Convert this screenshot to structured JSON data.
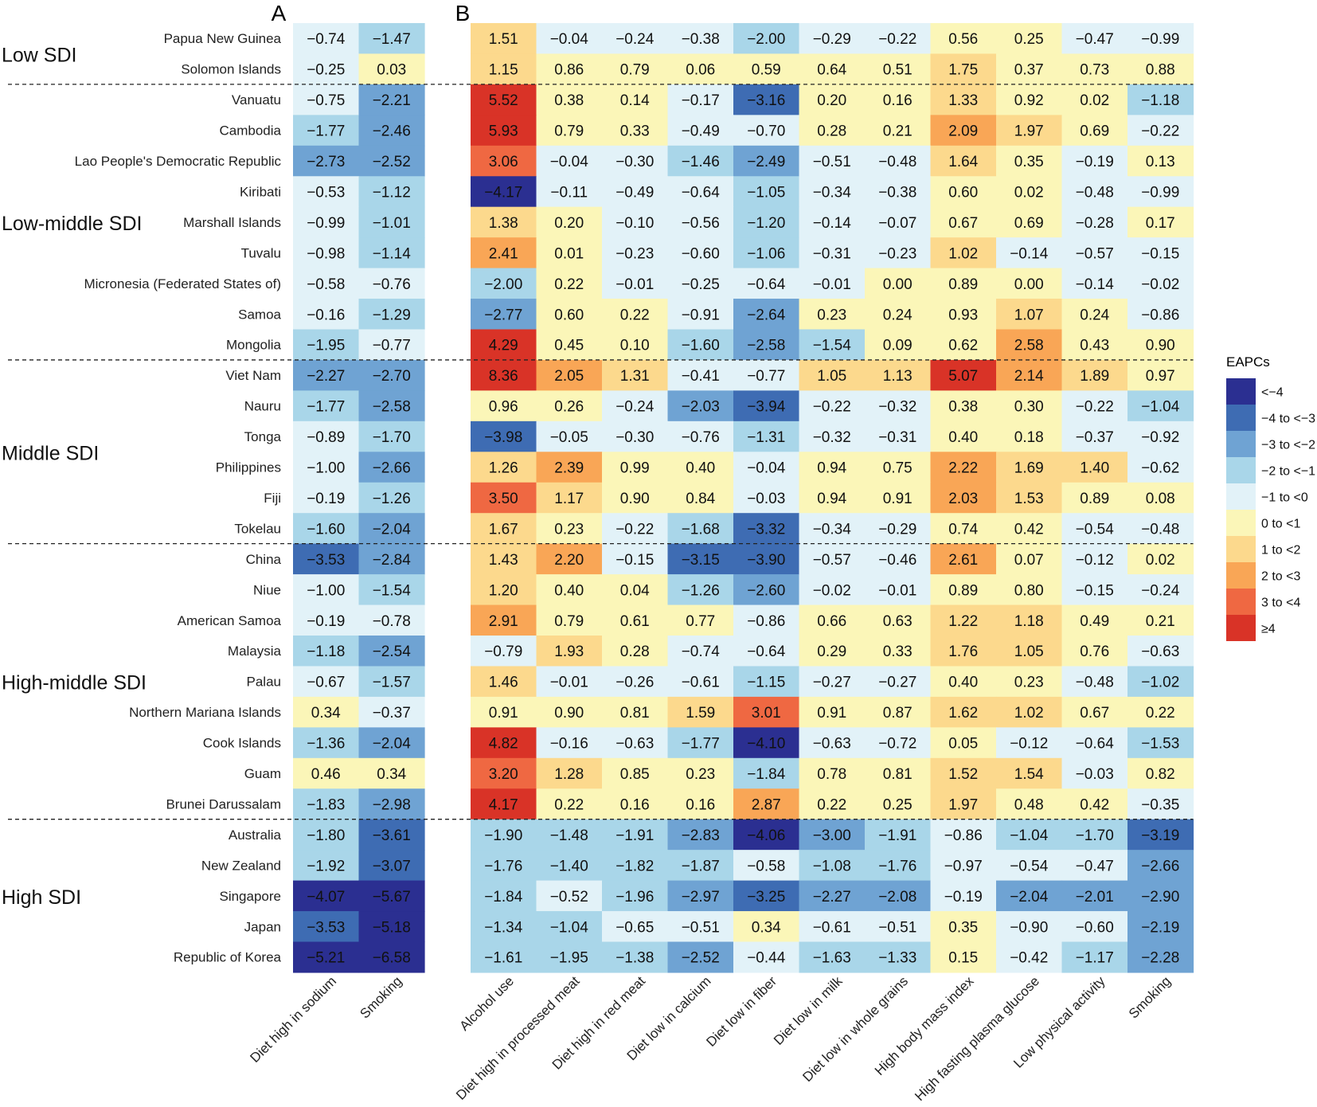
{
  "panels": {
    "a_label": "A",
    "b_label": "B"
  },
  "groups": [
    {
      "label": "Low SDI",
      "rows": [
        0,
        1
      ]
    },
    {
      "label": "Low-middle SDI",
      "rows": [
        2,
        10
      ]
    },
    {
      "label": "Middle SDI",
      "rows": [
        11,
        16
      ]
    },
    {
      "label": "High-middle SDI",
      "rows": [
        17,
        25
      ]
    },
    {
      "label": "High SDI",
      "rows": [
        26,
        30
      ]
    }
  ],
  "legend": {
    "title": "EAPCs",
    "items": [
      {
        "label": "<−4",
        "color": "#2b2f91"
      },
      {
        "label": "−4 to <−3",
        "color": "#3e6cb3"
      },
      {
        "label": "−3 to <−2",
        "color": "#6fa3d3"
      },
      {
        "label": "−2 to <−1",
        "color": "#a9d6e9"
      },
      {
        "label": "−1 to <0",
        "color": "#e2f2f8"
      },
      {
        "label": "0 to <1",
        "color": "#fbf6b8"
      },
      {
        "label": "1 to <2",
        "color": "#fcd98d"
      },
      {
        "label": "2 to <3",
        "color": "#f9a656"
      },
      {
        "label": "3 to <4",
        "color": "#ef6842"
      },
      {
        "label": "≥4",
        "color": "#d93327"
      }
    ]
  },
  "chart_data": [
    {
      "type": "heatmap",
      "panel": "A",
      "rows": [
        "Papua New Guinea",
        "Solomon Islands",
        "Vanuatu",
        "Cambodia",
        "Lao People's Democratic Republic",
        "Kiribati",
        "Marshall Islands",
        "Tuvalu",
        "Micronesia (Federated States of)",
        "Samoa",
        "Mongolia",
        "Viet Nam",
        "Nauru",
        "Tonga",
        "Philippines",
        "Fiji",
        "Tokelau",
        "China",
        "Niue",
        "American Samoa",
        "Malaysia",
        "Palau",
        "Northern Mariana Islands",
        "Cook Islands",
        "Guam",
        "Brunei Darussalam",
        "Australia",
        "New Zealand",
        "Singapore",
        "Japan",
        "Republic of Korea"
      ],
      "columns": [
        "Diet high in sodium",
        "Smoking"
      ],
      "values": [
        [
          -0.74,
          -1.47
        ],
        [
          -0.25,
          0.03
        ],
        [
          -0.75,
          -2.21
        ],
        [
          -1.77,
          -2.46
        ],
        [
          -2.73,
          -2.52
        ],
        [
          -0.53,
          -1.12
        ],
        [
          -0.99,
          -1.01
        ],
        [
          -0.98,
          -1.14
        ],
        [
          -0.58,
          -0.76
        ],
        [
          -0.16,
          -1.29
        ],
        [
          -1.95,
          -0.77
        ],
        [
          -2.27,
          -2.7
        ],
        [
          -1.77,
          -2.58
        ],
        [
          -0.89,
          -1.7
        ],
        [
          -1.0,
          -2.66
        ],
        [
          -0.19,
          -1.26
        ],
        [
          -1.6,
          -2.04
        ],
        [
          -3.53,
          -2.84
        ],
        [
          -1.0,
          -1.54
        ],
        [
          -0.19,
          -0.78
        ],
        [
          -1.18,
          -2.54
        ],
        [
          -0.67,
          -1.57
        ],
        [
          0.34,
          -0.37
        ],
        [
          -1.36,
          -2.04
        ],
        [
          0.46,
          0.34
        ],
        [
          -1.83,
          -2.98
        ],
        [
          -1.8,
          -3.61
        ],
        [
          -1.92,
          -3.07
        ],
        [
          -4.07,
          -5.67
        ],
        [
          -3.53,
          -5.18
        ],
        [
          -5.21,
          -6.58
        ]
      ]
    },
    {
      "type": "heatmap",
      "panel": "B",
      "columns": [
        "Alcohol use",
        "Diet high in processed meat",
        "Diet high in red meat",
        "Diet low in calcium",
        "Diet low in fiber",
        "Diet low in milk",
        "Diet low in whole grains",
        "High body mass index",
        "High fasting plasma glucose",
        "Low physical activity",
        "Smoking"
      ],
      "values": [
        [
          1.51,
          -0.04,
          -0.24,
          -0.38,
          -2.0,
          -0.29,
          -0.22,
          0.56,
          0.25,
          -0.47,
          -0.99
        ],
        [
          1.15,
          0.86,
          0.79,
          0.06,
          0.59,
          0.64,
          0.51,
          1.75,
          0.37,
          0.73,
          0.88
        ],
        [
          5.52,
          0.38,
          0.14,
          -0.17,
          -3.16,
          0.2,
          0.16,
          1.33,
          0.92,
          0.02,
          -1.18
        ],
        [
          5.93,
          0.79,
          0.33,
          -0.49,
          -0.7,
          0.28,
          0.21,
          2.09,
          1.97,
          0.69,
          -0.22
        ],
        [
          3.06,
          -0.04,
          -0.3,
          -1.46,
          -2.49,
          -0.51,
          -0.48,
          1.64,
          0.35,
          -0.19,
          0.13
        ],
        [
          -4.17,
          -0.11,
          -0.49,
          -0.64,
          -1.05,
          -0.34,
          -0.38,
          0.6,
          0.02,
          -0.48,
          -0.99
        ],
        [
          1.38,
          0.2,
          -0.1,
          -0.56,
          -1.2,
          -0.14,
          -0.07,
          0.67,
          0.69,
          -0.28,
          0.17
        ],
        [
          2.41,
          0.01,
          -0.23,
          -0.6,
          -1.06,
          -0.31,
          -0.23,
          1.02,
          -0.14,
          -0.57,
          -0.15
        ],
        [
          -2.0,
          0.22,
          -0.01,
          -0.25,
          -0.64,
          -0.01,
          0.0,
          0.89,
          0.0,
          -0.14,
          -0.02
        ],
        [
          -2.77,
          0.6,
          0.22,
          -0.91,
          -2.64,
          0.23,
          0.24,
          0.93,
          1.07,
          0.24,
          -0.86
        ],
        [
          4.29,
          0.45,
          0.1,
          -1.6,
          -2.58,
          -1.54,
          0.09,
          0.62,
          2.58,
          0.43,
          0.9
        ],
        [
          8.36,
          2.05,
          1.31,
          -0.41,
          -0.77,
          1.05,
          1.13,
          5.07,
          2.14,
          1.89,
          0.97
        ],
        [
          0.96,
          0.26,
          -0.24,
          -2.03,
          -3.94,
          -0.22,
          -0.32,
          0.38,
          0.3,
          -0.22,
          -1.04
        ],
        [
          -3.98,
          -0.05,
          -0.3,
          -0.76,
          -1.31,
          -0.32,
          -0.31,
          0.4,
          0.18,
          -0.37,
          -0.92
        ],
        [
          1.26,
          2.39,
          0.99,
          0.4,
          -0.04,
          0.94,
          0.75,
          2.22,
          1.69,
          1.4,
          -0.62
        ],
        [
          3.5,
          1.17,
          0.9,
          0.84,
          -0.03,
          0.94,
          0.91,
          2.03,
          1.53,
          0.89,
          0.08
        ],
        [
          1.67,
          0.23,
          -0.22,
          -1.68,
          -3.32,
          -0.34,
          -0.29,
          0.74,
          0.42,
          -0.54,
          -0.48
        ],
        [
          1.43,
          2.2,
          -0.15,
          -3.15,
          -3.9,
          -0.57,
          -0.46,
          2.61,
          0.07,
          -0.12,
          0.02
        ],
        [
          1.2,
          0.4,
          0.04,
          -1.26,
          -2.6,
          -0.02,
          -0.01,
          0.89,
          0.8,
          -0.15,
          -0.24
        ],
        [
          2.91,
          0.79,
          0.61,
          0.77,
          -0.86,
          0.66,
          0.63,
          1.22,
          1.18,
          0.49,
          0.21
        ],
        [
          -0.79,
          1.93,
          0.28,
          -0.74,
          -0.64,
          0.29,
          0.33,
          1.76,
          1.05,
          0.76,
          -0.63
        ],
        [
          1.46,
          -0.01,
          -0.26,
          -0.61,
          -1.15,
          -0.27,
          -0.27,
          0.4,
          0.23,
          -0.48,
          -1.02
        ],
        [
          0.91,
          0.9,
          0.81,
          1.59,
          3.01,
          0.91,
          0.87,
          1.62,
          1.02,
          0.67,
          0.22
        ],
        [
          4.82,
          -0.16,
          -0.63,
          -1.77,
          -4.1,
          -0.63,
          -0.72,
          0.05,
          -0.12,
          -0.64,
          -1.53
        ],
        [
          3.2,
          1.28,
          0.85,
          0.23,
          -1.84,
          0.78,
          0.81,
          1.52,
          1.54,
          -0.03,
          0.82
        ],
        [
          4.17,
          0.22,
          0.16,
          0.16,
          2.87,
          0.22,
          0.25,
          1.97,
          0.48,
          0.42,
          -0.35
        ],
        [
          -1.9,
          -1.48,
          -1.91,
          -2.83,
          -4.06,
          -3.0,
          -1.91,
          -0.86,
          -1.04,
          -1.7,
          -3.19
        ],
        [
          -1.76,
          -1.4,
          -1.82,
          -1.87,
          -0.58,
          -1.08,
          -1.76,
          -0.97,
          -0.54,
          -0.47,
          -2.66
        ],
        [
          -1.84,
          -0.52,
          -1.96,
          -2.97,
          -3.25,
          -2.27,
          -2.08,
          -0.19,
          -2.04,
          -2.01,
          -2.9
        ],
        [
          -1.34,
          -1.04,
          -0.65,
          -0.51,
          0.34,
          -0.61,
          -0.51,
          0.35,
          -0.9,
          -0.6,
          -2.19
        ],
        [
          -1.61,
          -1.95,
          -1.38,
          -2.52,
          -0.44,
          -1.63,
          -1.33,
          0.15,
          -0.42,
          -1.17,
          -2.28
        ]
      ]
    }
  ]
}
